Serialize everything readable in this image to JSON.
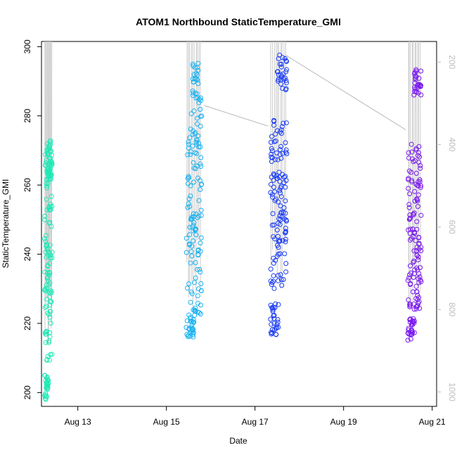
{
  "chart_data": {
    "type": "scatter",
    "title": "ATOM1 Northbound StaticTemperature_GMI",
    "xlabel": "Date",
    "ylabel": "StaticTemperature_GMI",
    "xlim": [
      12.18,
      21.1
    ],
    "ylim": [
      196,
      301.5
    ],
    "xticks": [
      {
        "value": 13,
        "label": "Aug 13"
      },
      {
        "value": 15,
        "label": "Aug 15"
      },
      {
        "value": 17,
        "label": "Aug 17"
      },
      {
        "value": 19,
        "label": "Aug 19"
      },
      {
        "value": 21,
        "label": "Aug 21"
      }
    ],
    "yticks": [
      200,
      220,
      240,
      260,
      280,
      300
    ],
    "secondary_axis": {
      "side": "right",
      "reversed": true,
      "ylim": [
        1035,
        150
      ],
      "ticks": [
        200,
        400,
        600,
        800,
        1000
      ],
      "color": "#bdbdbd"
    },
    "grid": false,
    "legend": "none",
    "colors": {
      "flight1": "#1de9b6",
      "flight2": "#1ab2f0",
      "flight3": "#1a3cf5",
      "flight4": "#7a1af0",
      "profile_line": "#cccccc",
      "transit_line": "#bbbbbb"
    },
    "flights": [
      {
        "x_range": [
          12.25,
          12.42
        ],
        "low": [
          198,
          205
        ],
        "mid": [
          209,
          273
        ],
        "high_cluster": [
          262,
          272
        ]
      },
      {
        "x_range": [
          15.45,
          15.8
        ],
        "low": [
          216,
          222
        ],
        "mid": [
          222,
          282
        ],
        "high_cluster": [
          283,
          296
        ]
      },
      {
        "x_range": [
          17.35,
          17.72
        ],
        "low": [
          216,
          226
        ],
        "mid": [
          230,
          280
        ],
        "high_cluster": [
          287,
          298
        ]
      },
      {
        "x_range": [
          20.45,
          20.75
        ],
        "low": [
          215,
          222
        ],
        "mid": [
          224,
          272
        ],
        "high_cluster": [
          286,
          294
        ]
      }
    ],
    "transit_lines": [
      {
        "x": [
          15.85,
          17.3
        ],
        "y": [
          283,
          277
        ]
      },
      {
        "x": [
          17.7,
          20.4
        ],
        "y": [
          297.5,
          276
        ]
      }
    ]
  }
}
